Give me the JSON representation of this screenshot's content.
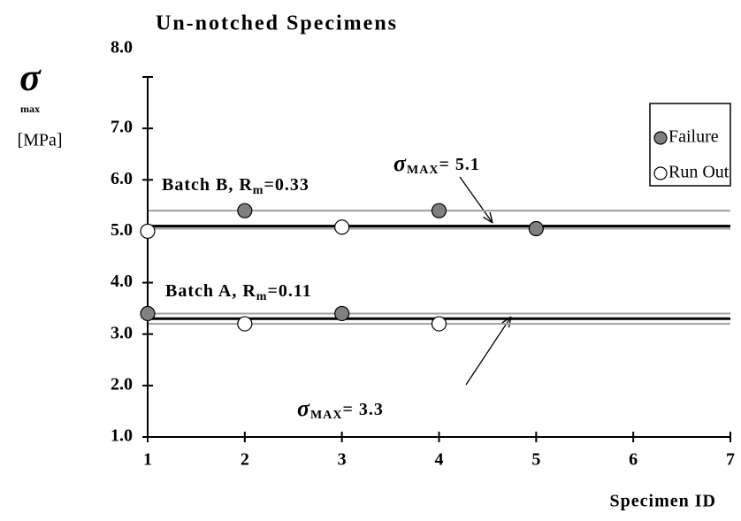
{
  "chart_data": {
    "type": "scatter",
    "title": "Un-notched Specimens",
    "x_label": "Specimen ID",
    "y_label": [
      "σ",
      "max",
      "[MPa]"
    ],
    "xlim": [
      1,
      7
    ],
    "xticks": [
      1,
      2,
      3,
      4,
      5,
      6,
      7
    ],
    "ylim": [
      1,
      8
    ],
    "yticks": [
      {
        "value": 1,
        "label": "1.0"
      },
      {
        "value": 2,
        "label": "2.0"
      },
      {
        "value": 3,
        "label": "3.0"
      },
      {
        "value": 4,
        "label": "4.0"
      },
      {
        "value": 5,
        "label": "5.0"
      },
      {
        "value": 6,
        "label": "6.0"
      },
      {
        "value": 7,
        "label": "7.0"
      },
      {
        "value": 8,
        "label": "8.0"
      }
    ],
    "legend": "top-right",
    "series": [
      {
        "name": "Failure",
        "color": "#808080",
        "x": [
          2,
          4,
          5,
          1,
          3
        ],
        "values": [
          5.4,
          5.4,
          5.05,
          3.4,
          3.4
        ]
      },
      {
        "name": "Run Out",
        "color": "#ffffff",
        "x": [
          1,
          3,
          2,
          4
        ],
        "values": [
          5.0,
          5.08,
          3.2,
          3.2
        ]
      }
    ],
    "reference_lines": [
      {
        "y": 5.4,
        "color": "#a0a0a0"
      },
      {
        "y": 5.05,
        "color": "#a0a0a0"
      },
      {
        "y": 5.1,
        "color": "#000000"
      },
      {
        "y": 3.4,
        "color": "#a0a0a0"
      },
      {
        "y": 3.2,
        "color": "#a0a0a0"
      },
      {
        "y": 3.3,
        "color": "#000000"
      }
    ],
    "annotations": [
      {
        "parts": [
          "Batch B, R",
          "m",
          "=0.33"
        ]
      },
      {
        "parts": [
          "Batch A, R",
          "m",
          "=0.11"
        ]
      },
      {
        "parts": [
          "σ",
          "MAX",
          "= 5.1"
        ]
      },
      {
        "parts": [
          "σ",
          "MAX",
          "= 3.3"
        ]
      }
    ]
  }
}
